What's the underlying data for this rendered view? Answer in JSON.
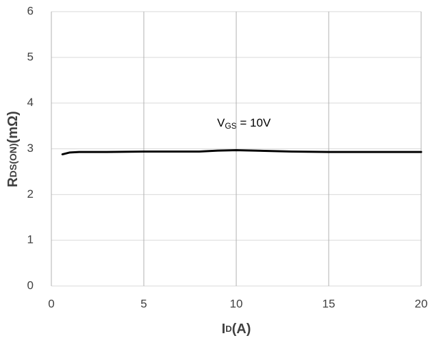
{
  "chart_data": {
    "type": "line",
    "xlabel": [
      "I",
      "D",
      "(A)"
    ],
    "ylabel": [
      "R",
      "DS(ON)",
      "(mΩ)"
    ],
    "annotation": [
      "V",
      "GS",
      " = 10V"
    ],
    "x": [
      0.6,
      1,
      1.5,
      3,
      5,
      8,
      9,
      10,
      11,
      13,
      15,
      18,
      20
    ],
    "series": [
      {
        "name": "VGS = 10V",
        "color": "#000000",
        "values": [
          2.88,
          2.92,
          2.93,
          2.93,
          2.94,
          2.94,
          2.96,
          2.97,
          2.96,
          2.94,
          2.93,
          2.93,
          2.93
        ]
      }
    ],
    "xlim": [
      0,
      20
    ],
    "xticks": [
      0,
      5,
      10,
      15,
      20
    ],
    "ylim": [
      0,
      6
    ],
    "yticks": [
      0,
      1,
      2,
      3,
      4,
      5,
      6
    ],
    "grid": true
  }
}
